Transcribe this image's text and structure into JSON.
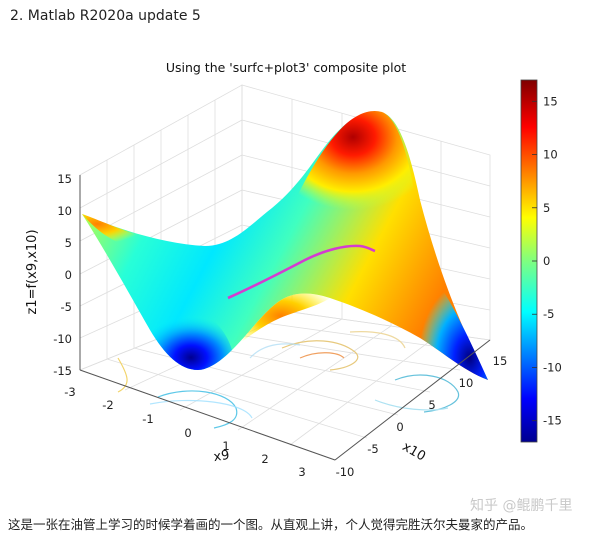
{
  "heading": "2. Matlab R2020a update 5",
  "caption": "这是一张在油管上学习的时候学着画的一个图。从直观上讲，个人觉得完胜沃尔夫曼家的产品。",
  "watermark": "知乎 @鲲鹏千里",
  "colors": {
    "pink_line": "#d43cd0",
    "grid": "#e0e0e0",
    "bg": "#ffffff"
  },
  "chart_data": {
    "type": "surface",
    "title": "Using the 'surfc+plot3' composite plot",
    "xlabel": "x9",
    "ylabel": "x10",
    "zlabel": "z1=f(x9,x10)",
    "xlim": [
      -3,
      3
    ],
    "ylim": [
      -10,
      15
    ],
    "zlim": [
      -15,
      15
    ],
    "x_ticks": [
      "-3",
      "-2",
      "-1",
      "0",
      "1",
      "2",
      "3"
    ],
    "y_ticks": [
      "-10",
      "-5",
      "0",
      "5",
      "10",
      "15"
    ],
    "z_ticks": [
      "15",
      "10",
      "5",
      "0",
      "-5",
      "-10",
      "-15"
    ],
    "colorbar": {
      "ticks": [
        "15",
        "10",
        "5",
        "0",
        "-5",
        "-10",
        "-15"
      ],
      "range": [
        -17,
        17
      ],
      "colormap": "jet"
    },
    "extras": [
      "contour plot on base plane",
      "magenta line drawn with plot3 on surface"
    ]
  }
}
